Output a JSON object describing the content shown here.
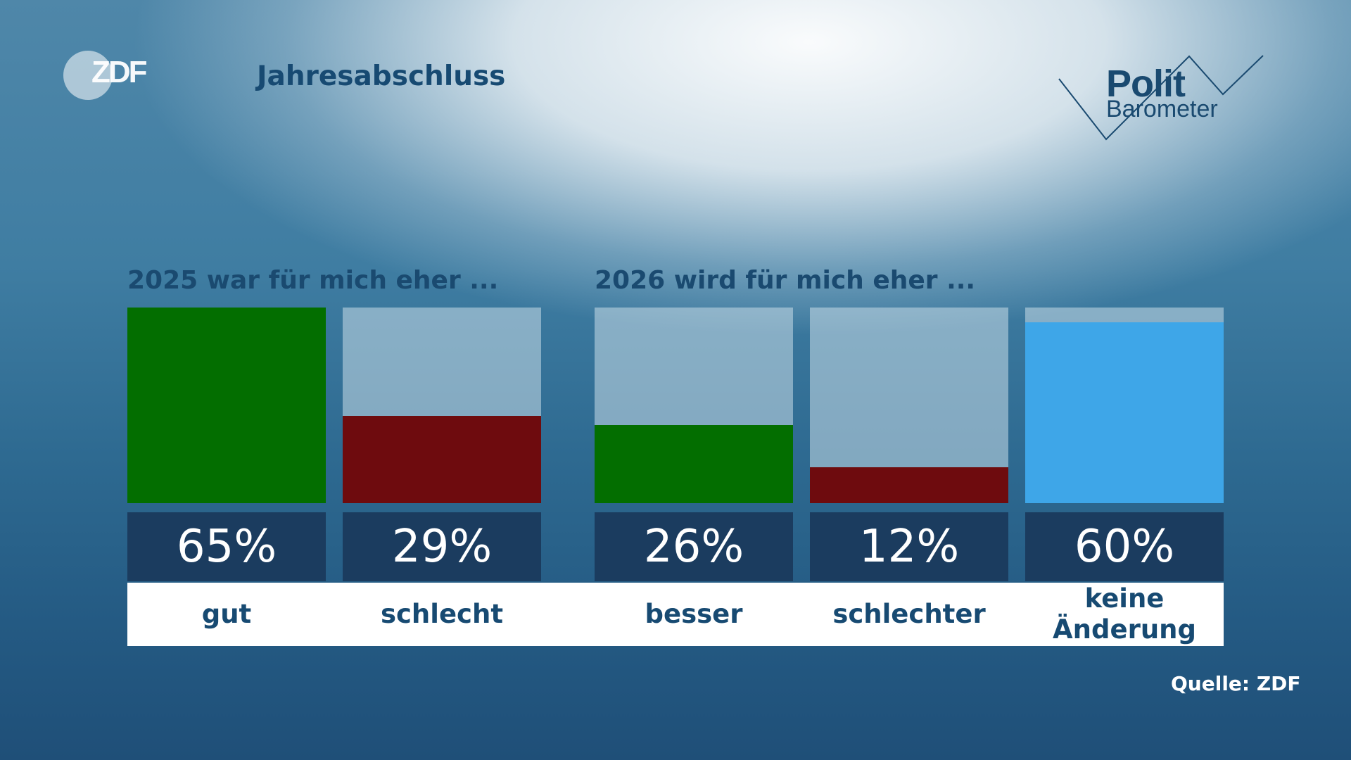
{
  "logo": {
    "zdf": "ZDF",
    "polit": "Polit",
    "barometer": "Barometer"
  },
  "title": "Jahresabschluss",
  "source": "Quelle: ZDF",
  "colors": {
    "good": "#036e00",
    "bad": "#6e0b0e",
    "neutral": "#3ea6e8",
    "track": "rgba(200,220,232,0.55)",
    "value_box": "#1b3c5f"
  },
  "chart_data": [
    {
      "type": "bar",
      "title": "2025 war für mich eher ...",
      "categories": [
        "gut",
        "schlecht"
      ],
      "values": [
        65,
        29
      ],
      "value_labels": [
        "65%",
        "29%"
      ],
      "ylim": [
        0,
        65
      ],
      "unit": "%"
    },
    {
      "type": "bar",
      "title": "2026 wird für mich eher ...",
      "categories": [
        "besser",
        "schlechter",
        "keine Änderung"
      ],
      "values": [
        26,
        12,
        60
      ],
      "value_labels": [
        "26%",
        "12%",
        "60%"
      ],
      "ylim": [
        0,
        65
      ],
      "unit": "%"
    }
  ]
}
